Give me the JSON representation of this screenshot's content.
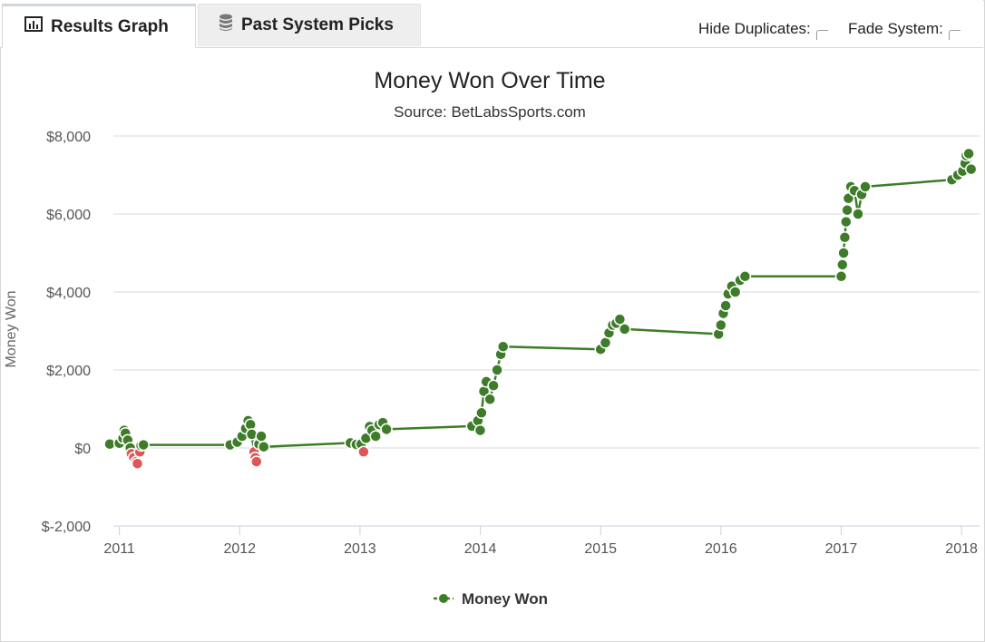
{
  "tabs": [
    {
      "label": "Results Graph",
      "icon": "bar-chart-icon",
      "active": true
    },
    {
      "label": "Past System Picks",
      "icon": "database-icon",
      "active": false
    }
  ],
  "options": {
    "hide_duplicates_label": "Hide Duplicates:",
    "hide_duplicates_checked": false,
    "fade_system_label": "Fade System:",
    "fade_system_checked": false
  },
  "colors": {
    "line": "#3e7c2a",
    "positive_marker": "#3e7c2a",
    "negative_marker": "#e05555",
    "grid": "#d8d8d8",
    "axis": "#c7d2e0"
  },
  "chart_data": {
    "type": "line",
    "title": "Money Won Over Time",
    "subtitle": "Source: BetLabsSports.com",
    "ylabel": "Money Won",
    "xlabel": "",
    "ylim": [
      -2000,
      8000
    ],
    "yticks": [
      -2000,
      0,
      2000,
      4000,
      6000,
      8000
    ],
    "ytick_labels": [
      "$-2,000",
      "$0",
      "$2,000",
      "$4,000",
      "$6,000",
      "$8,000"
    ],
    "xlim": [
      2010.95,
      2018.15
    ],
    "xticks": [
      2011,
      2012,
      2013,
      2014,
      2015,
      2016,
      2017,
      2018
    ],
    "xtick_labels": [
      "2011",
      "2012",
      "2013",
      "2014",
      "2015",
      "2016",
      "2017",
      "2018"
    ],
    "grid": true,
    "legend_position": "bottom-center",
    "series": [
      {
        "name": "Money Won",
        "points": [
          [
            2010.92,
            100
          ],
          [
            2011.0,
            120
          ],
          [
            2011.03,
            250
          ],
          [
            2011.04,
            450
          ],
          [
            2011.05,
            380
          ],
          [
            2011.07,
            200
          ],
          [
            2011.09,
            0
          ],
          [
            2011.1,
            -150
          ],
          [
            2011.12,
            -250
          ],
          [
            2011.14,
            -350
          ],
          [
            2011.15,
            -400
          ],
          [
            2011.17,
            -100
          ],
          [
            2011.18,
            60
          ],
          [
            2011.2,
            80
          ],
          [
            2011.92,
            80
          ],
          [
            2011.98,
            150
          ],
          [
            2012.02,
            300
          ],
          [
            2012.05,
            500
          ],
          [
            2012.07,
            700
          ],
          [
            2012.09,
            600
          ],
          [
            2012.1,
            350
          ],
          [
            2012.12,
            -100
          ],
          [
            2012.13,
            -250
          ],
          [
            2012.14,
            -350
          ],
          [
            2012.16,
            100
          ],
          [
            2012.18,
            300
          ],
          [
            2012.2,
            30
          ],
          [
            2012.92,
            130
          ],
          [
            2012.97,
            90
          ],
          [
            2013.01,
            100
          ],
          [
            2013.03,
            -100
          ],
          [
            2013.05,
            250
          ],
          [
            2013.08,
            550
          ],
          [
            2013.1,
            450
          ],
          [
            2013.13,
            300
          ],
          [
            2013.16,
            600
          ],
          [
            2013.19,
            650
          ],
          [
            2013.22,
            480
          ],
          [
            2013.93,
            560
          ],
          [
            2013.98,
            700
          ],
          [
            2014.0,
            450
          ],
          [
            2014.01,
            900
          ],
          [
            2014.03,
            1450
          ],
          [
            2014.05,
            1700
          ],
          [
            2014.08,
            1250
          ],
          [
            2014.11,
            1600
          ],
          [
            2014.14,
            2000
          ],
          [
            2014.17,
            2400
          ],
          [
            2014.19,
            2600
          ],
          [
            2015.0,
            2530
          ],
          [
            2015.04,
            2700
          ],
          [
            2015.07,
            2950
          ],
          [
            2015.1,
            3150
          ],
          [
            2015.13,
            3200
          ],
          [
            2015.16,
            3300
          ],
          [
            2015.2,
            3050
          ],
          [
            2015.98,
            2920
          ],
          [
            2016.0,
            3150
          ],
          [
            2016.02,
            3450
          ],
          [
            2016.04,
            3650
          ],
          [
            2016.06,
            3950
          ],
          [
            2016.09,
            4150
          ],
          [
            2016.12,
            4000
          ],
          [
            2016.16,
            4300
          ],
          [
            2016.2,
            4400
          ],
          [
            2017.0,
            4400
          ],
          [
            2017.01,
            4700
          ],
          [
            2017.02,
            5000
          ],
          [
            2017.03,
            5400
          ],
          [
            2017.04,
            5800
          ],
          [
            2017.05,
            6100
          ],
          [
            2017.06,
            6400
          ],
          [
            2017.08,
            6700
          ],
          [
            2017.11,
            6600
          ],
          [
            2017.14,
            6000
          ],
          [
            2017.17,
            6500
          ],
          [
            2017.2,
            6700
          ],
          [
            2017.92,
            6880
          ],
          [
            2017.97,
            7000
          ],
          [
            2018.01,
            7100
          ],
          [
            2018.03,
            7300
          ],
          [
            2018.04,
            7500
          ],
          [
            2018.06,
            7550
          ],
          [
            2018.08,
            7150
          ]
        ]
      }
    ]
  }
}
